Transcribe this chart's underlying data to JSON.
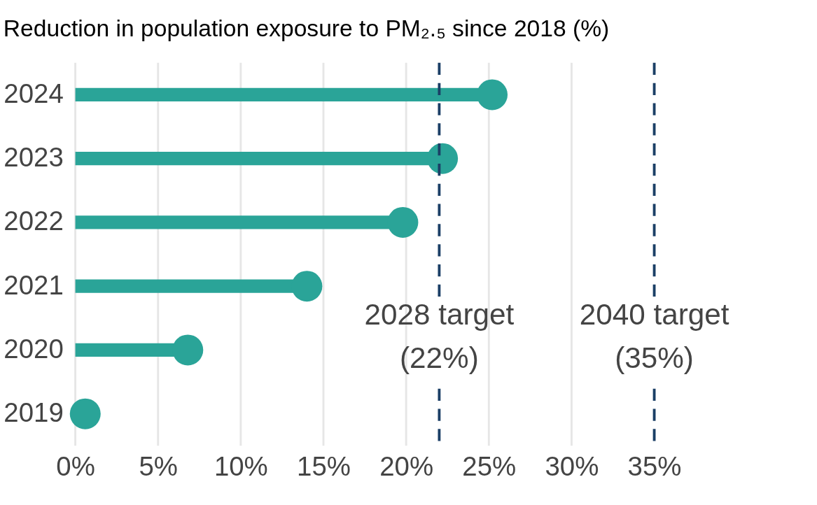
{
  "chart_data": {
    "type": "lollipop",
    "orientation": "horizontal",
    "title": "Reduction in population exposure to PM₂.₅ since 2018 (%)",
    "categories": [
      "2024",
      "2023",
      "2022",
      "2021",
      "2020",
      "2019"
    ],
    "values": [
      25.2,
      22.2,
      19.8,
      14.0,
      6.8,
      0.6
    ],
    "color": "#2aa498",
    "xlim": [
      0,
      35
    ],
    "xticks": [
      {
        "value": 0,
        "label": "0%"
      },
      {
        "value": 5,
        "label": "5%"
      },
      {
        "value": 10,
        "label": "10%"
      },
      {
        "value": 15,
        "label": "15%"
      },
      {
        "value": 20,
        "label": "20%"
      },
      {
        "value": 25,
        "label": "25%"
      },
      {
        "value": 30,
        "label": "30%"
      },
      {
        "value": 35,
        "label": "35%"
      }
    ],
    "grid": "x",
    "marker": "circle",
    "ref_lines": [
      {
        "axis": "x",
        "value": 22,
        "label": "2028 target\n(22%)",
        "color": "#1b3f66",
        "line_style": "dashed"
      },
      {
        "axis": "x",
        "value": 35,
        "label": "2040 target\n(35%)",
        "color": "#1b3f66",
        "line_style": "dashed"
      }
    ]
  }
}
